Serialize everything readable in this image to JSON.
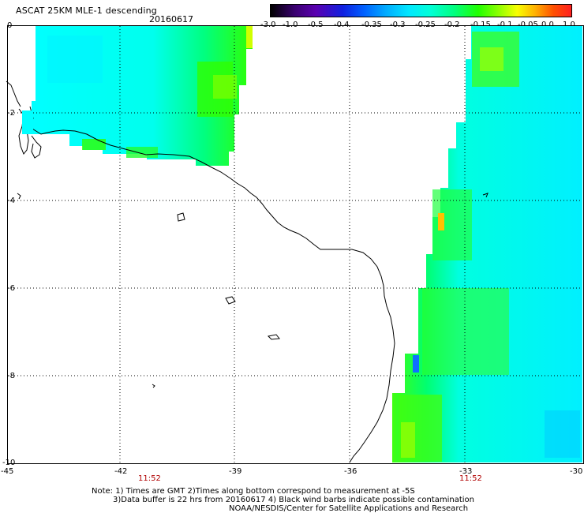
{
  "header": {
    "title": "ASCAT 25KM MLE-1 descending",
    "date": "20160617"
  },
  "colorbar": {
    "labels": [
      "-3.0",
      "-1.0",
      "-0.5",
      "-0.4",
      "-0.35",
      "-0.3",
      "-0.25",
      "-0.2",
      "-0.15",
      "-0.1",
      "-0.05",
      "0.0",
      "1.0"
    ]
  },
  "axes": {
    "y_ticks": [
      "0",
      "-2",
      "-4",
      "-6",
      "-8",
      "-10"
    ],
    "x_ticks": [
      "-45",
      "-42",
      "-39",
      "-36",
      "-33",
      "-30"
    ],
    "pass_times": [
      "11:52",
      "11:52"
    ]
  },
  "notes": {
    "line1": "Note: 1) Times are GMT 2)Times along bottom correspond to measurement at -5S",
    "line2": "3)Data buffer is 22 hrs from 20160617 4) Black wind barbs indicate possible contamination",
    "line3": "NOAA/NESDIS/Center for Satellite Applications and Research"
  },
  "colors": {
    "cyan": "#00ffff",
    "green": "#00ff00",
    "light_green": "#60ff20",
    "yellow_green": "#b0ff00",
    "yellow": "#ffff00",
    "orange": "#ffb000",
    "blue": "#0080ff",
    "deep_cyan": "#00e0ff"
  }
}
